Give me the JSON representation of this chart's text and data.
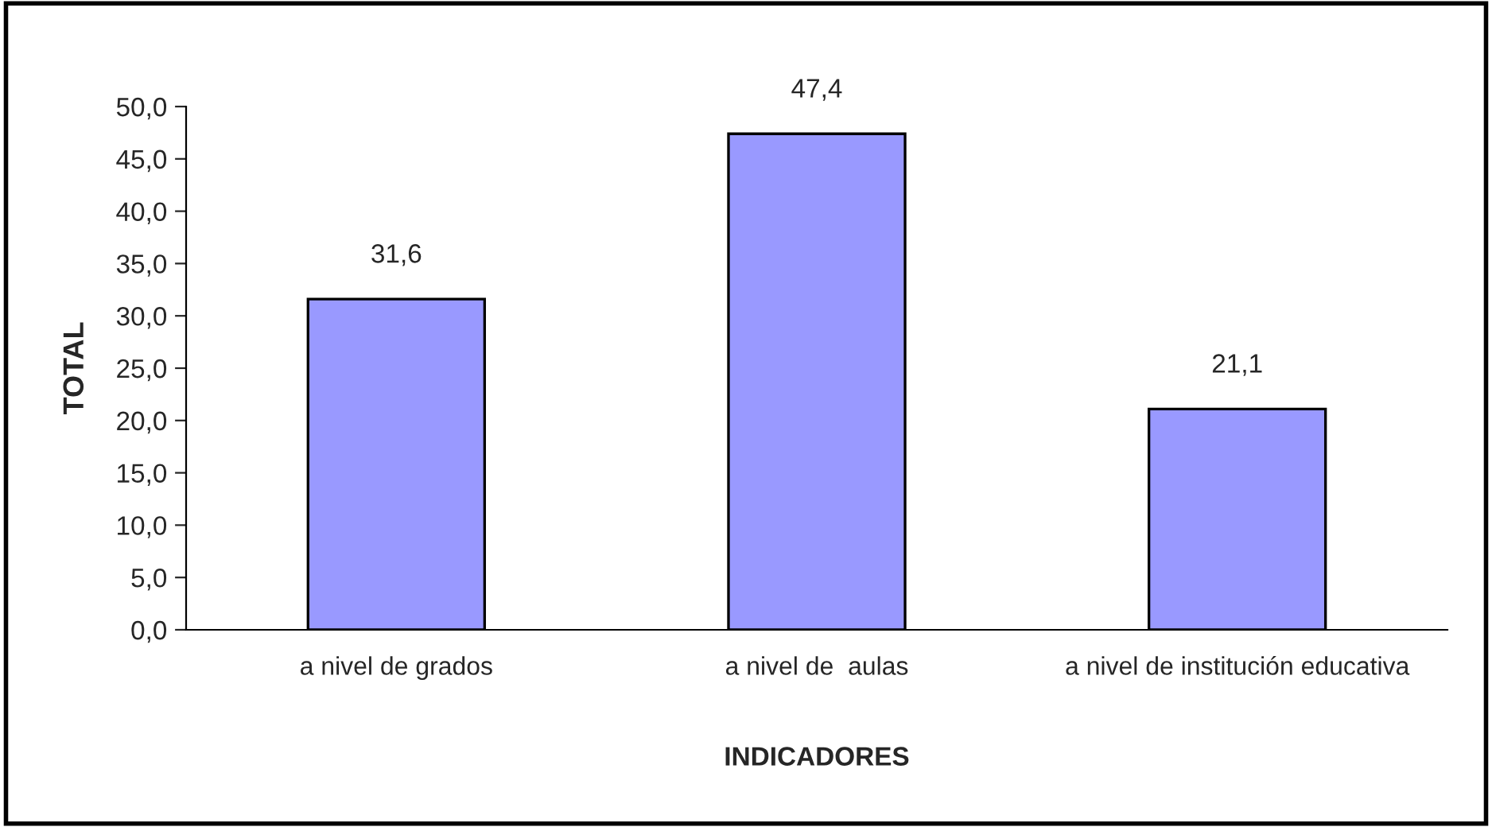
{
  "chart_data": {
    "type": "bar",
    "categories": [
      "a nivel de grados",
      "a nivel de  aulas",
      "a nivel de institución educativa"
    ],
    "values": [
      31.6,
      47.4,
      21.1
    ],
    "value_labels": [
      "31,6",
      "47,4",
      "21,1"
    ],
    "color": "#9999ff",
    "xlabel": "INDICADORES",
    "ylabel": "TOTAL",
    "ylim": [
      0,
      50
    ],
    "yticks": [
      {
        "value": 0,
        "label": "0,0"
      },
      {
        "value": 5,
        "label": "5,0"
      },
      {
        "value": 10,
        "label": "10,0"
      },
      {
        "value": 15,
        "label": "15,0"
      },
      {
        "value": 20,
        "label": "20,0"
      },
      {
        "value": 25,
        "label": "25,0"
      },
      {
        "value": 30,
        "label": "30,0"
      },
      {
        "value": 35,
        "label": "35,0"
      },
      {
        "value": 40,
        "label": "40,0"
      },
      {
        "value": 45,
        "label": "45,0"
      },
      {
        "value": 50,
        "label": "50,0"
      }
    ],
    "grid": false,
    "legend": false
  }
}
